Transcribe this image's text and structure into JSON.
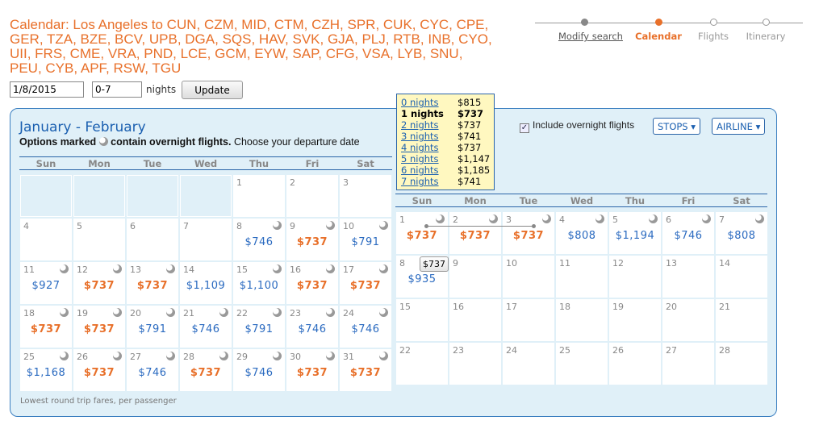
{
  "title": "Calendar: Los Angeles to CUN, CZM, MID, CTM, CZH, SPR, CUK, CYC, CPE, GER, TZA, BZE, BCV, UPB, DGA, SQS, HAV, SVK, GJA, PLJ, RTB, INB, CYO, UII, FRS, CME, VRA, PND, LCE, GCM, EYW, SAP, CFG, VSA, LYB, SNU, PEU, CYB, APF, RSW, TGU",
  "search": {
    "date": "1/8/2015",
    "nights": "0-7",
    "nights_label": "nights",
    "update_label": "Update"
  },
  "steps": [
    {
      "label": "Modify search",
      "state": "done"
    },
    {
      "label": "Calendar",
      "state": "current"
    },
    {
      "label": "Flights",
      "state": "todo"
    },
    {
      "label": "Itinerary",
      "state": "todo"
    }
  ],
  "colors": {
    "accent": "#e8702a",
    "link": "#1a5fb0",
    "panel_bg": "#e0f0f8"
  },
  "calendar": {
    "heading": "January - February",
    "note_bold_1": "Options marked",
    "note_bold_2": "contain overnight flights.",
    "note_rest": "Choose your departure date",
    "overnight_label": "Include overnight flights",
    "overnight_checked": true,
    "stops_label": "STOPS ▾",
    "airline_label": "AIRLINE ▾",
    "weekdays": [
      "Sun",
      "Mon",
      "Tue",
      "Wed",
      "Thu",
      "Fri",
      "Sat"
    ],
    "footer": "Lowest round trip fares, per passenger",
    "months": [
      {
        "name": "January",
        "start_weekday": 4,
        "days": [
          {
            "d": "1"
          },
          {
            "d": "2"
          },
          {
            "d": "3"
          },
          {
            "d": "4"
          },
          {
            "d": "5"
          },
          {
            "d": "6"
          },
          {
            "d": "7"
          },
          {
            "d": "8",
            "p": "$746",
            "m": true
          },
          {
            "d": "9",
            "p": "$737",
            "low": true,
            "m": true
          },
          {
            "d": "10",
            "p": "$791",
            "m": true
          },
          {
            "d": "11",
            "p": "$927",
            "m": true
          },
          {
            "d": "12",
            "p": "$737",
            "low": true,
            "m": true
          },
          {
            "d": "13",
            "p": "$737",
            "low": true,
            "m": true
          },
          {
            "d": "14",
            "p": "$1,109"
          },
          {
            "d": "15",
            "p": "$1,100",
            "m": true
          },
          {
            "d": "16",
            "p": "$737",
            "low": true,
            "m": true
          },
          {
            "d": "17",
            "p": "$737",
            "low": true,
            "m": true
          },
          {
            "d": "18",
            "p": "$737",
            "low": true,
            "m": true
          },
          {
            "d": "19",
            "p": "$737",
            "low": true,
            "m": true
          },
          {
            "d": "20",
            "p": "$791",
            "m": true
          },
          {
            "d": "21",
            "p": "$746",
            "m": true
          },
          {
            "d": "22",
            "p": "$791",
            "m": true
          },
          {
            "d": "23",
            "p": "$746",
            "m": true
          },
          {
            "d": "24",
            "p": "$746",
            "m": true
          },
          {
            "d": "25",
            "p": "$1,168",
            "m": true
          },
          {
            "d": "26",
            "p": "$737",
            "low": true,
            "m": true
          },
          {
            "d": "27",
            "p": "$746",
            "m": true
          },
          {
            "d": "28",
            "p": "$737",
            "low": true,
            "m": true
          },
          {
            "d": "29",
            "p": "$746",
            "m": true
          },
          {
            "d": "30",
            "p": "$737",
            "low": true,
            "m": true
          },
          {
            "d": "31",
            "p": "$737",
            "low": true,
            "m": true
          }
        ]
      },
      {
        "name": "February",
        "start_weekday": 0,
        "days": [
          {
            "d": "1",
            "p": "$737",
            "low": true,
            "m": true
          },
          {
            "d": "2",
            "p": "$737",
            "low": true,
            "m": true
          },
          {
            "d": "3",
            "p": "$737",
            "low": true,
            "m": true
          },
          {
            "d": "4",
            "p": "$808",
            "m": true
          },
          {
            "d": "5",
            "p": "$1,194",
            "m": true
          },
          {
            "d": "6",
            "p": "$746",
            "m": true
          },
          {
            "d": "7",
            "p": "$808",
            "m": true
          },
          {
            "d": "8",
            "p": "$935"
          },
          {
            "d": "9"
          },
          {
            "d": "10"
          },
          {
            "d": "11"
          },
          {
            "d": "12"
          },
          {
            "d": "13"
          },
          {
            "d": "14"
          },
          {
            "d": "15"
          },
          {
            "d": "16"
          },
          {
            "d": "17"
          },
          {
            "d": "18"
          },
          {
            "d": "19"
          },
          {
            "d": "20"
          },
          {
            "d": "21"
          },
          {
            "d": "22"
          },
          {
            "d": "23"
          },
          {
            "d": "24"
          },
          {
            "d": "25"
          },
          {
            "d": "26"
          },
          {
            "d": "27"
          },
          {
            "d": "28"
          }
        ]
      }
    ]
  },
  "popup": {
    "rows": [
      {
        "label": "0 nights",
        "price": "$815"
      },
      {
        "label": "1 nights",
        "price": "$737",
        "selected": true
      },
      {
        "label": "2 nights",
        "price": "$737"
      },
      {
        "label": "3 nights",
        "price": "$741"
      },
      {
        "label": "4 nights",
        "price": "$737"
      },
      {
        "label": "5 nights",
        "price": "$1,147"
      },
      {
        "label": "6 nights",
        "price": "$1,185"
      },
      {
        "label": "7 nights",
        "price": "$741"
      }
    ]
  },
  "hover_tooltip": "$737"
}
